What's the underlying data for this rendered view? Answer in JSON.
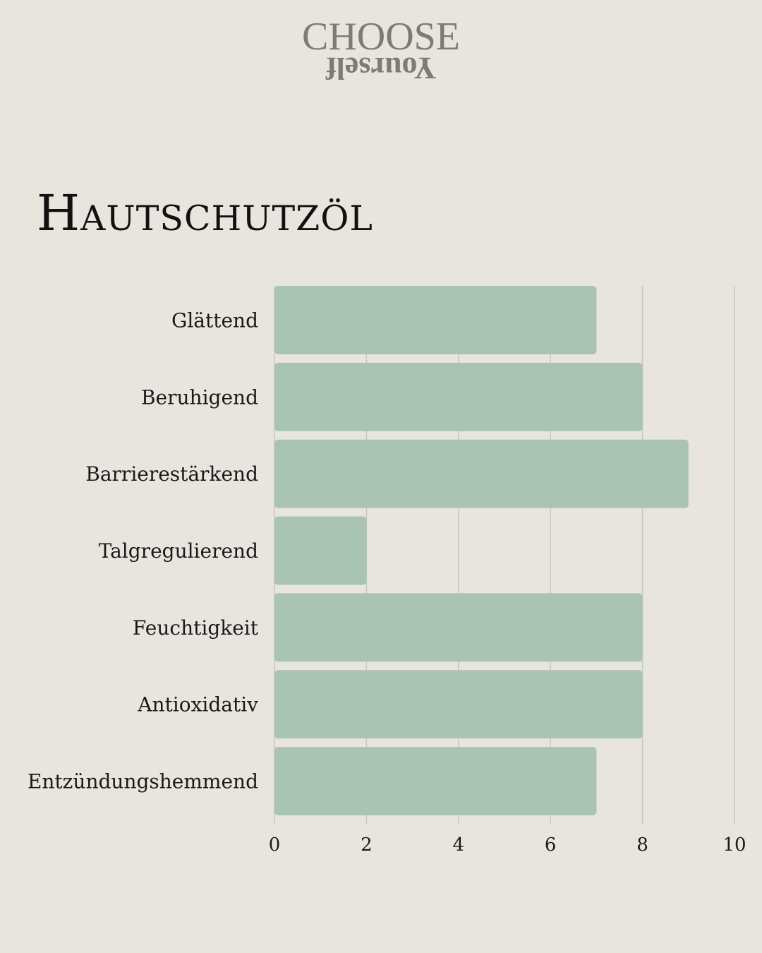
{
  "logo": {
    "top": "CHOOSE",
    "bottom": "Yourself"
  },
  "colors": {
    "background": "#e8e5df",
    "bar": "#a9c4b3",
    "grid": "#c8c6c1",
    "logo": "#7c7c76"
  },
  "chart_data": {
    "type": "bar",
    "orientation": "horizontal",
    "title": "Hautschutzöl",
    "categories": [
      "Glättend",
      "Beruhigend",
      "Barrierestärkend",
      "Talgregulierend",
      "Feuchtigkeit",
      "Antioxidativ",
      "Entzündungshemmend"
    ],
    "values": [
      7,
      8,
      9,
      2,
      8,
      8,
      7
    ],
    "xlim": [
      0,
      10
    ],
    "xticks": [
      0,
      2,
      4,
      6,
      8,
      10
    ],
    "grid": true,
    "legend": "none"
  }
}
